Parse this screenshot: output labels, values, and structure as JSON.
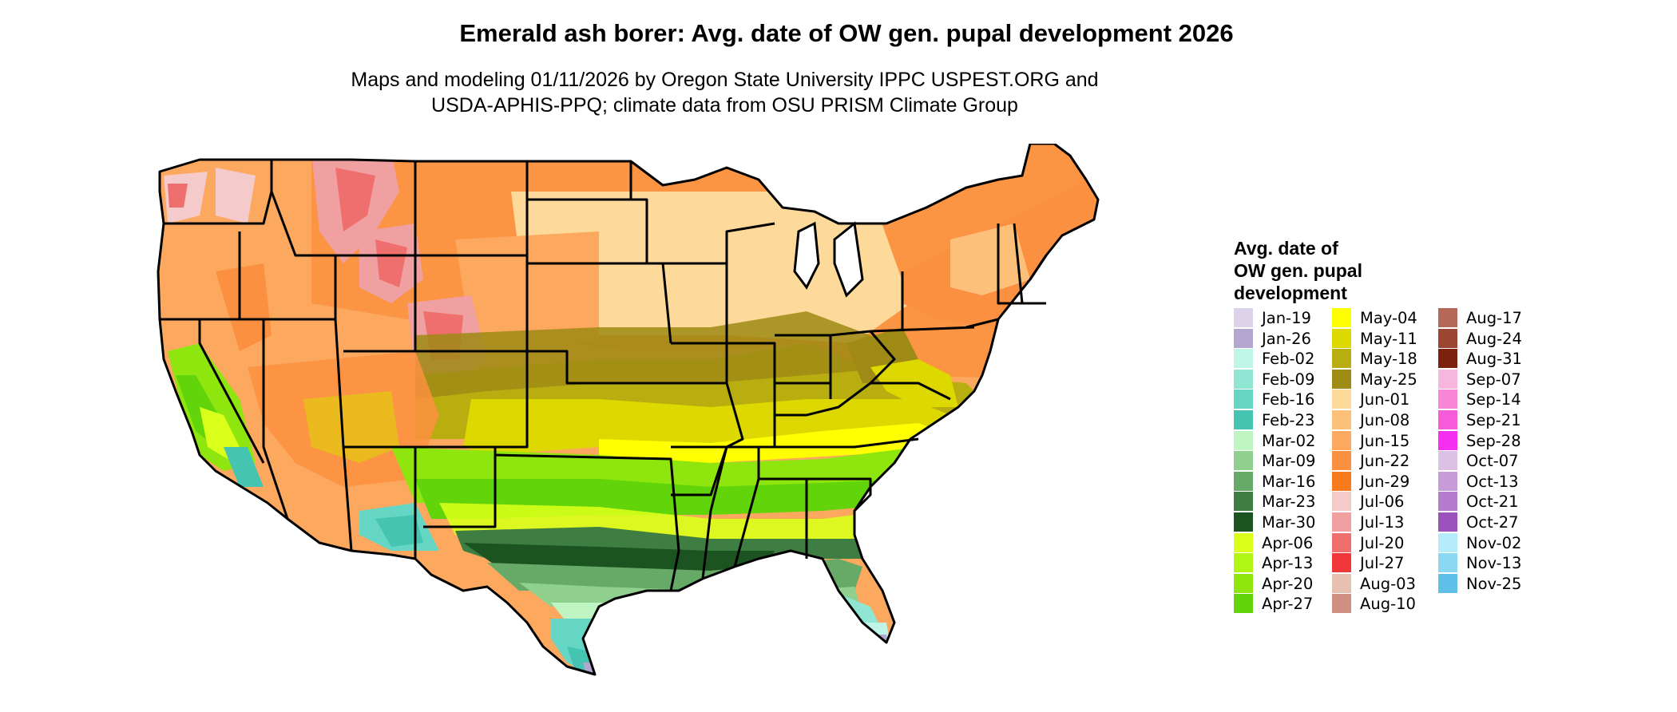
{
  "title": "Emerald ash borer: Avg. date of OW gen. pupal development 2026",
  "subtitle_line1": "Maps and modeling 01/11/2026 by Oregon State University IPPC USPEST.ORG and",
  "subtitle_line2": "USDA-APHIS-PPQ; climate data from OSU PRISM Climate Group",
  "legend": {
    "title_line1": "Avg. date of",
    "title_line2": "OW gen. pupal",
    "title_line3": "development",
    "columns": [
      [
        {
          "label": "Jan-19",
          "color": "#dcd3ea"
        },
        {
          "label": "Jan-26",
          "color": "#b3a6cf"
        },
        {
          "label": "Feb-02",
          "color": "#bff5e6"
        },
        {
          "label": "Feb-09",
          "color": "#8fe6d3"
        },
        {
          "label": "Feb-16",
          "color": "#66d6c4"
        },
        {
          "label": "Feb-23",
          "color": "#46c4b2"
        },
        {
          "label": "Mar-02",
          "color": "#bff5c2"
        },
        {
          "label": "Mar-09",
          "color": "#8fd08f"
        },
        {
          "label": "Mar-16",
          "color": "#67a967"
        },
        {
          "label": "Mar-23",
          "color": "#3f7e42"
        },
        {
          "label": "Mar-30",
          "color": "#1b5420"
        },
        {
          "label": "Apr-06",
          "color": "#d9ff1a"
        },
        {
          "label": "Apr-13",
          "color": "#b1f514"
        },
        {
          "label": "Apr-20",
          "color": "#8ee60e"
        },
        {
          "label": "Apr-27",
          "color": "#62d40a"
        }
      ],
      [
        {
          "label": "May-04",
          "color": "#ffff00"
        },
        {
          "label": "May-11",
          "color": "#dcd800"
        },
        {
          "label": "May-18",
          "color": "#b8ae0f"
        },
        {
          "label": "May-25",
          "color": "#9e8a14"
        },
        {
          "label": "Jun-01",
          "color": "#fdd99a"
        },
        {
          "label": "Jun-08",
          "color": "#fdc07a"
        },
        {
          "label": "Jun-15",
          "color": "#fca85e"
        },
        {
          "label": "Jun-22",
          "color": "#fb9140"
        },
        {
          "label": "Jun-29",
          "color": "#f77a1c"
        },
        {
          "label": "Jul-06",
          "color": "#f5caca"
        },
        {
          "label": "Jul-13",
          "color": "#f0a0a0"
        },
        {
          "label": "Jul-20",
          "color": "#ef6f6f"
        },
        {
          "label": "Jul-27",
          "color": "#f0373a"
        },
        {
          "label": "Aug-03",
          "color": "#e8c0b2"
        },
        {
          "label": "Aug-10",
          "color": "#cf8f82"
        }
      ],
      [
        {
          "label": "Aug-17",
          "color": "#b36858"
        },
        {
          "label": "Aug-24",
          "color": "#9c4632"
        },
        {
          "label": "Aug-31",
          "color": "#7d210f"
        },
        {
          "label": "Sep-07",
          "color": "#f7b6de"
        },
        {
          "label": "Sep-14",
          "color": "#f787d6"
        },
        {
          "label": "Sep-21",
          "color": "#f75bd9"
        },
        {
          "label": "Sep-28",
          "color": "#f52ff0"
        },
        {
          "label": "Oct-07",
          "color": "#dcc0e6"
        },
        {
          "label": "Oct-13",
          "color": "#c79ad8"
        },
        {
          "label": "Oct-21",
          "color": "#b47bcc"
        },
        {
          "label": "Oct-27",
          "color": "#9c52bd"
        },
        {
          "label": "Nov-02",
          "color": "#b6ecf9"
        },
        {
          "label": "Nov-13",
          "color": "#8bd8f2"
        },
        {
          "label": "Nov-25",
          "color": "#5ec0e8"
        }
      ]
    ]
  }
}
